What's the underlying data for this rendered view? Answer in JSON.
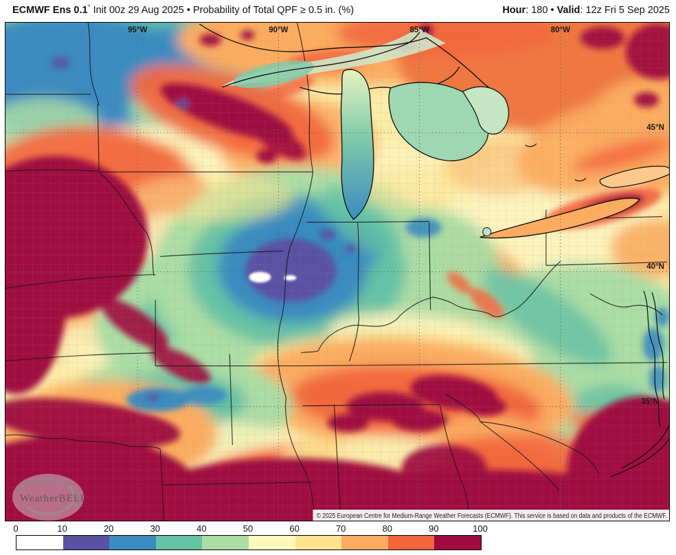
{
  "header": {
    "left": {
      "bold": "ECMWF Ens 0.1",
      "degree": "°",
      "rest": " Init 00z 29 Aug 2025 • Probability of Total QPF ≥ 0.5 in. (%)"
    },
    "right": {
      "hour_label": "Hour",
      "hour_rest": ": 180 • ",
      "valid_label": "Valid",
      "valid_rest": ": 12z Fri 5 Sep 2025"
    }
  },
  "map": {
    "lon_labels": [
      "95°W",
      "90°W",
      "85°W",
      "80°W"
    ],
    "lat_labels": [
      "45°N",
      "40°N",
      "35°N"
    ],
    "watermark_text": "WeatherBELL",
    "attribution": "© 2025 European Centre for Medium-Range Weather Forecasts (ECMWF). This service is based on data and products of the ECMWF."
  },
  "colorbar": {
    "unit": "%",
    "tick_labels": [
      "0",
      "10",
      "20",
      "30",
      "40",
      "50",
      "60",
      "70",
      "80",
      "90",
      "100"
    ],
    "segment_ranges": [
      "0-10",
      "10-20",
      "20-30",
      "30-40",
      "40-50",
      "50-60",
      "60-70",
      "70-80",
      "80-90",
      "90-100"
    ],
    "segment_colors": [
      "#ffffff",
      "#5a51a5",
      "#3a8bc0",
      "#66c2a5",
      "#abdda4",
      "#fdf8bc",
      "#fee491",
      "#fcac60",
      "#f3673e",
      "#a00c41"
    ]
  }
}
